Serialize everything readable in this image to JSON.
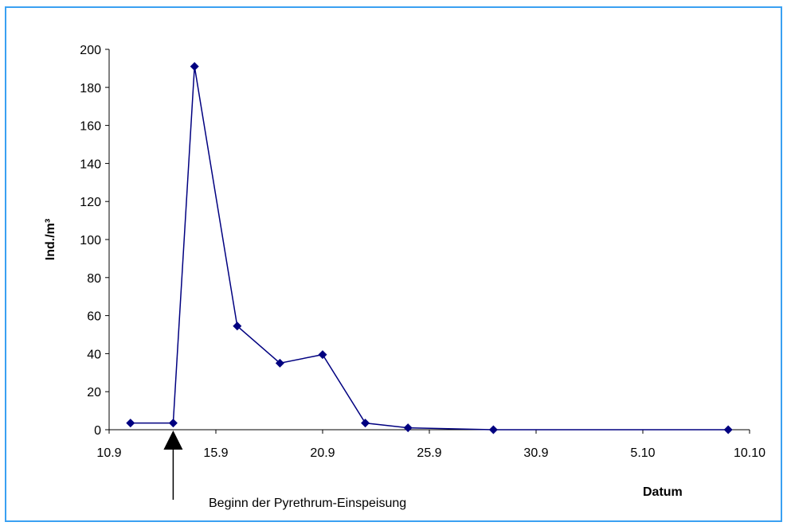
{
  "chart_data": {
    "type": "line",
    "title": "",
    "xlabel": "Datum",
    "ylabel": "Ind./m³",
    "xlim": [
      "10.9",
      "10.10"
    ],
    "ylim": [
      0,
      200
    ],
    "grid": false,
    "x_tick_labels": [
      "10.9",
      "15.9",
      "20.9",
      "25.9",
      "30.9",
      "5.10",
      "10.10"
    ],
    "y_tick_labels": [
      "0",
      "20",
      "40",
      "60",
      "80",
      "100",
      "120",
      "140",
      "160",
      "180",
      "200"
    ],
    "series": [
      {
        "color": "#000080",
        "marker": "diamond",
        "points": [
          {
            "x": "11.9",
            "y": 3.5
          },
          {
            "x": "13.9",
            "y": 3.5
          },
          {
            "x": "14.9",
            "y": 191
          },
          {
            "x": "16.9",
            "y": 54.5
          },
          {
            "x": "18.9",
            "y": 35
          },
          {
            "x": "20.9",
            "y": 39.5
          },
          {
            "x": "22.9",
            "y": 3.5
          },
          {
            "x": "24.9",
            "y": 1
          },
          {
            "x": "28.9",
            "y": 0
          },
          {
            "x": "9.10",
            "y": 0
          }
        ]
      }
    ],
    "annotation": {
      "text": "Beginn der Pyrethrum-Einspeisung",
      "x": "13.9"
    }
  }
}
